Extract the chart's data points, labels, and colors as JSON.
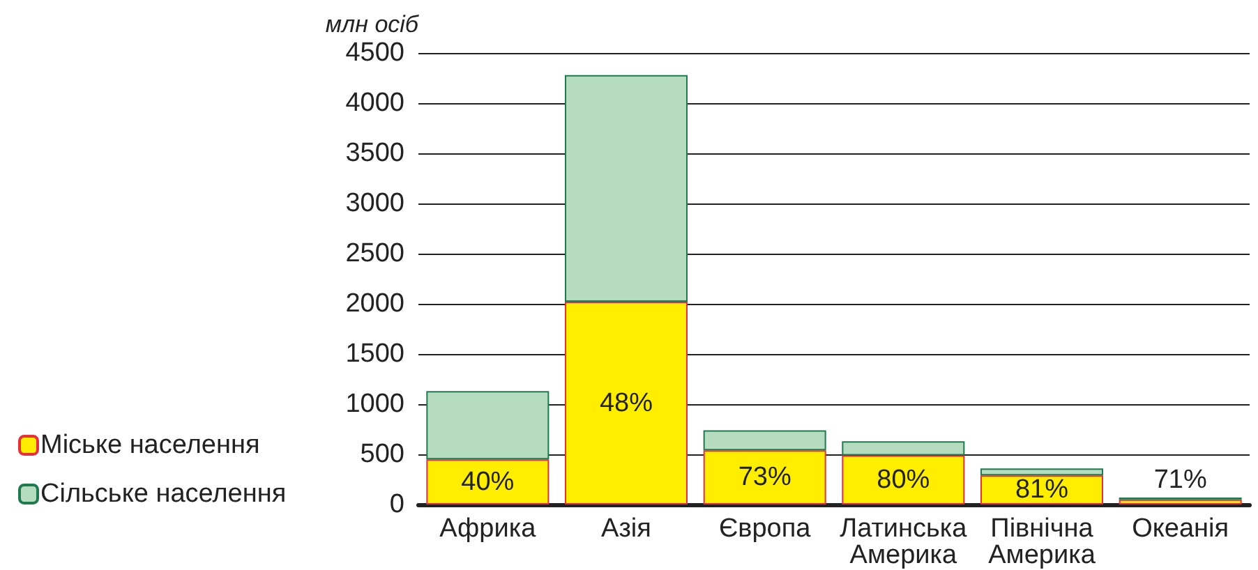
{
  "chart_data": {
    "type": "bar",
    "stacked": true,
    "ylabel": "млн осіб",
    "categories": [
      "Африка",
      "Азія",
      "Європа",
      "Латинська Америка",
      "Північна Америка",
      "Океанія"
    ],
    "series": [
      {
        "name": "Міське населення",
        "color": "#ffee00",
        "values": [
          450,
          2020,
          540,
          490,
          290,
          50
        ]
      },
      {
        "name": "Сільське населення",
        "color": "#b6dcc0",
        "values": [
          680,
          2260,
          200,
          140,
          70,
          20
        ]
      }
    ],
    "annotations": [
      "40%",
      "48%",
      "73%",
      "80%",
      "81%",
      "71%"
    ],
    "ylim": [
      0,
      4500
    ],
    "yticks": [
      0,
      500,
      1000,
      1500,
      2000,
      2500,
      3000,
      3500,
      4000,
      4500
    ],
    "grid": "y",
    "legend": "bottom left"
  }
}
